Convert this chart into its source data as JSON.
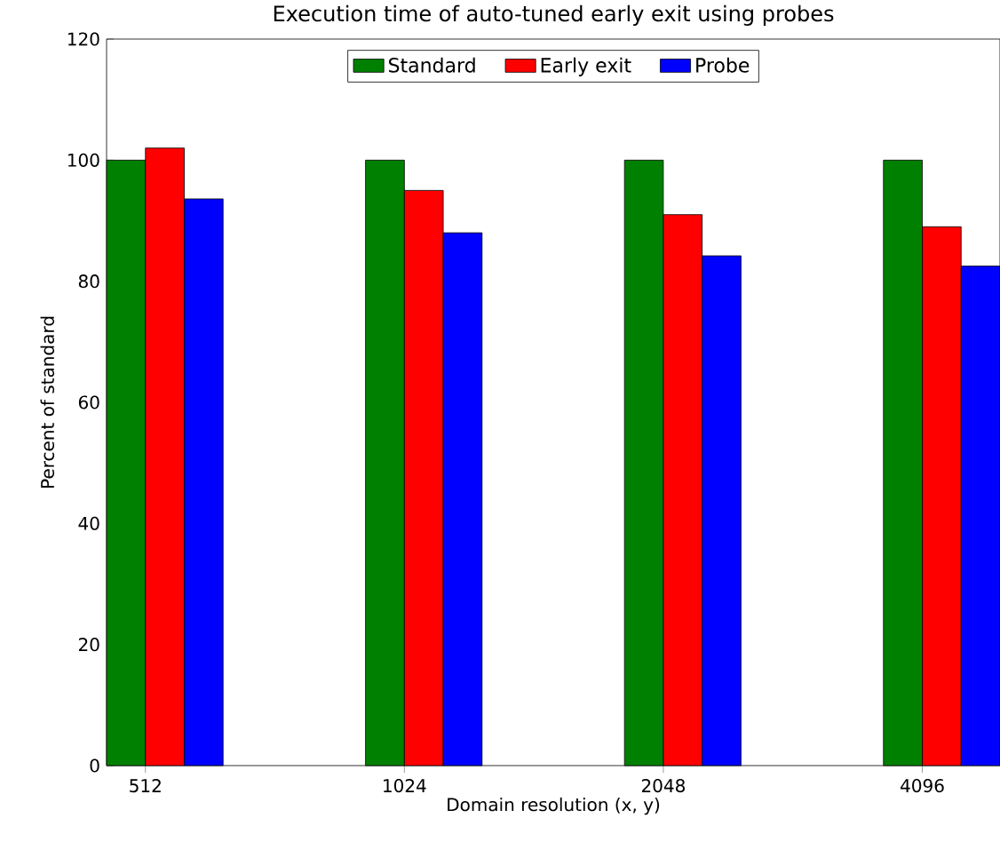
{
  "chart_data": {
    "type": "bar",
    "title": "Execution time of auto-tuned early exit using probes",
    "xlabel": "Domain resolution (x, y)",
    "ylabel": "Percent of standard",
    "categories": [
      "512",
      "1024",
      "2048",
      "4096"
    ],
    "series": [
      {
        "name": "Standard",
        "color": "#008000",
        "values": [
          100,
          100,
          100,
          100
        ]
      },
      {
        "name": "Early exit",
        "color": "#ff0000",
        "values": [
          102,
          95,
          91,
          89
        ]
      },
      {
        "name": "Probe",
        "color": "#0000ff",
        "values": [
          93.6,
          88,
          84.2,
          82.5
        ]
      }
    ],
    "ylim": [
      0,
      120
    ],
    "yticks": [
      0,
      20,
      40,
      60,
      80,
      100,
      120
    ],
    "legend": "top"
  }
}
